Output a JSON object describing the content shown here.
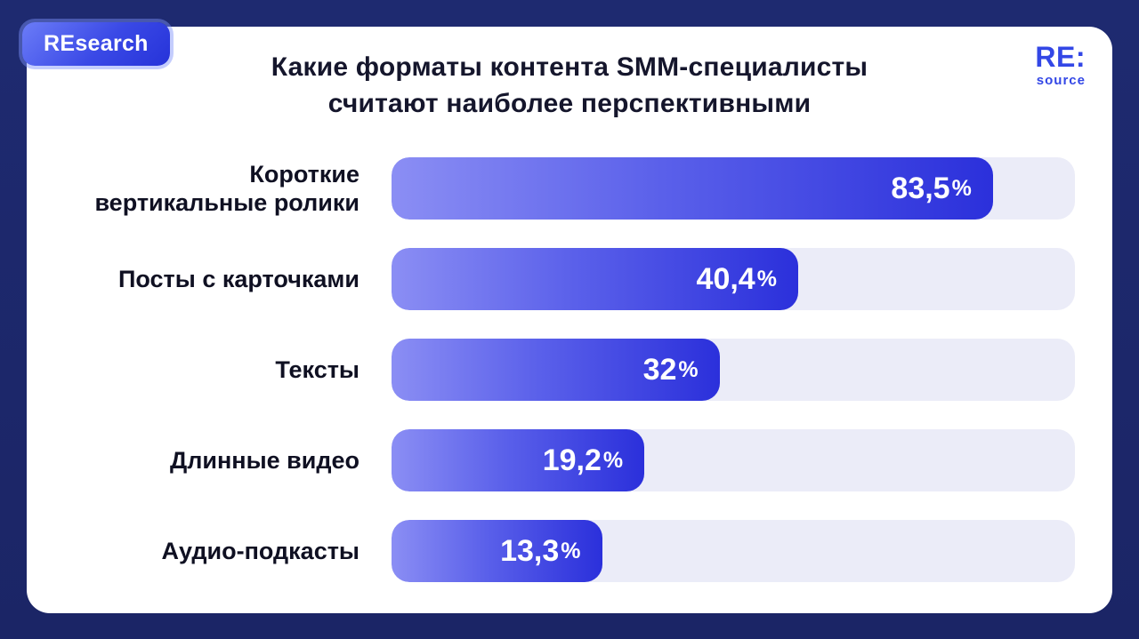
{
  "badge": {
    "label": "REsearch"
  },
  "logo": {
    "line1": "RE:",
    "line2": "source"
  },
  "title": {
    "line1": "Какие форматы контента SMM-специалисты",
    "line2": "считают наиболее перспективными"
  },
  "chart_data": {
    "type": "bar",
    "orientation": "horizontal",
    "title": "Какие форматы контента SMM-специалисты считают наиболее перспективными",
    "unit": "%",
    "xlim": [
      0,
      100
    ],
    "grid": false,
    "legend": false,
    "categories": [
      "Короткие вертикальные ролики",
      "Посты с карточками",
      "Тексты",
      "Длинные видео",
      "Аудио-подкасты"
    ],
    "values": [
      83.5,
      40.4,
      32,
      19.2,
      13.3
    ],
    "colors": {
      "bar_gradient_start": "#8b8ef4",
      "bar_gradient_end": "#2b30db",
      "track": "#ebecf8",
      "background": "#1c2769",
      "card": "#ffffff",
      "accent": "#3347e6"
    },
    "items": [
      {
        "label": "Короткие\nвертикальные ролики",
        "value": 83.5,
        "value_label": "83,5",
        "unit": "%",
        "width_pct": 88
      },
      {
        "label": "Посты с карточками",
        "value": 40.4,
        "value_label": "40,4",
        "unit": "%",
        "width_pct": 59.5
      },
      {
        "label": "Тексты",
        "value": 32,
        "value_label": "32",
        "unit": "%",
        "width_pct": 48
      },
      {
        "label": "Длинные видео",
        "value": 19.2,
        "value_label": "19,2",
        "unit": "%",
        "width_pct": 37
      },
      {
        "label": "Аудио-подкасты",
        "value": 13.3,
        "value_label": "13,3",
        "unit": "%",
        "width_pct": 30.8
      }
    ]
  }
}
